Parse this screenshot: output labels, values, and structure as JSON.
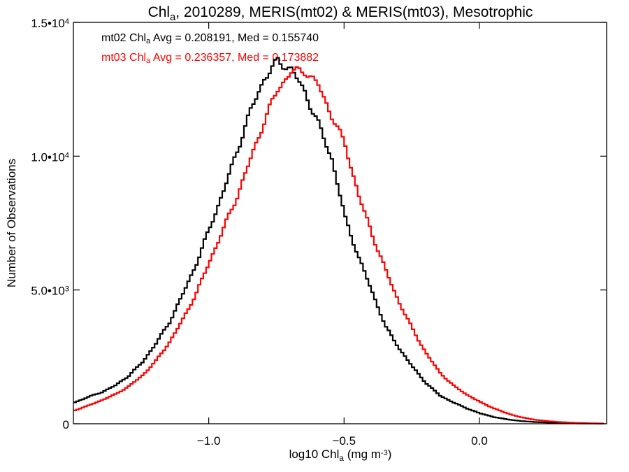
{
  "chart_data": {
    "type": "line",
    "title": {
      "parts": [
        {
          "text": "Chl",
          "sub": false
        },
        {
          "text": "a",
          "sub": true
        },
        {
          "text": ", 2010289, MERIS(mt02) & MERIS(mt03), Mesotrophic",
          "sub": false
        }
      ]
    },
    "xlabel": {
      "parts": [
        {
          "text": "log10 Chl",
          "sub": false
        },
        {
          "text": "a",
          "sub": true
        },
        {
          "text": " (mg m",
          "sub": false
        },
        {
          "text": "-3",
          "sup": true
        },
        {
          "text": ")",
          "sub": false
        }
      ]
    },
    "ylabel": "Number of Observations",
    "xlim": [
      -1.5,
      0.47
    ],
    "ylim": [
      0,
      15000
    ],
    "x_ticks": [
      {
        "value": -1.0,
        "label": "−1.0"
      },
      {
        "value": -0.5,
        "label": "−0.5"
      },
      {
        "value": 0.0,
        "label": "0.0"
      }
    ],
    "y_ticks": [
      {
        "value": 0,
        "mant": "0",
        "exp": ""
      },
      {
        "value": 5000,
        "mant": "5.0•10",
        "exp": "3"
      },
      {
        "value": 10000,
        "mant": "1.0•10",
        "exp": "4"
      },
      {
        "value": 15000,
        "mant": "1.5•10",
        "exp": "4"
      }
    ],
    "stats": [
      {
        "series": "mt02",
        "color": "#000000",
        "parts": [
          {
            "text": "mt02 Chl",
            "sub": false
          },
          {
            "text": "a",
            "sub": true
          },
          {
            "text": " Avg = 0.208191, Med = 0.155740",
            "sub": false
          }
        ]
      },
      {
        "series": "mt03",
        "color": "#ff0000",
        "parts": [
          {
            "text": "mt03 Chl",
            "sub": false
          },
          {
            "text": "a",
            "sub": true
          },
          {
            "text": " Avg = 0.236357, Med = 0.173882",
            "sub": false
          }
        ]
      }
    ],
    "series": [
      {
        "name": "mt02",
        "color": "#000000",
        "points": [
          [
            -1.5,
            800
          ],
          [
            -1.45,
            1000
          ],
          [
            -1.4,
            1180
          ],
          [
            -1.35,
            1430
          ],
          [
            -1.3,
            1800
          ],
          [
            -1.25,
            2300
          ],
          [
            -1.2,
            3000
          ],
          [
            -1.15,
            3800
          ],
          [
            -1.1,
            4850
          ],
          [
            -1.05,
            6000
          ],
          [
            -1.0,
            7350
          ],
          [
            -0.95,
            8700
          ],
          [
            -0.9,
            10200
          ],
          [
            -0.85,
            11700
          ],
          [
            -0.8,
            12900
          ],
          [
            -0.75,
            13550
          ],
          [
            -0.7,
            13250
          ],
          [
            -0.65,
            12400
          ],
          [
            -0.6,
            11200
          ],
          [
            -0.55,
            9900
          ],
          [
            -0.5,
            7650
          ],
          [
            -0.45,
            6200
          ],
          [
            -0.4,
            4900
          ],
          [
            -0.35,
            3600
          ],
          [
            -0.3,
            2800
          ],
          [
            -0.25,
            2100
          ],
          [
            -0.2,
            1500
          ],
          [
            -0.15,
            1050
          ],
          [
            -0.1,
            790
          ],
          [
            -0.05,
            570
          ],
          [
            0.0,
            380
          ],
          [
            0.05,
            250
          ],
          [
            0.1,
            160
          ],
          [
            0.15,
            100
          ],
          [
            0.2,
            65
          ],
          [
            0.25,
            42
          ],
          [
            0.3,
            25
          ],
          [
            0.35,
            15
          ],
          [
            0.4,
            8
          ],
          [
            0.45,
            5
          ]
        ]
      },
      {
        "name": "mt03",
        "color": "#ff0000",
        "points": [
          [
            -1.5,
            500
          ],
          [
            -1.45,
            680
          ],
          [
            -1.4,
            880
          ],
          [
            -1.35,
            1100
          ],
          [
            -1.3,
            1400
          ],
          [
            -1.25,
            1800
          ],
          [
            -1.2,
            2350
          ],
          [
            -1.15,
            3050
          ],
          [
            -1.1,
            3900
          ],
          [
            -1.05,
            4900
          ],
          [
            -1.0,
            6100
          ],
          [
            -0.95,
            7300
          ],
          [
            -0.9,
            8500
          ],
          [
            -0.85,
            9900
          ],
          [
            -0.8,
            11300
          ],
          [
            -0.75,
            12500
          ],
          [
            -0.7,
            13150
          ],
          [
            -0.65,
            13200
          ],
          [
            -0.6,
            12650
          ],
          [
            -0.55,
            11500
          ],
          [
            -0.5,
            10400
          ],
          [
            -0.45,
            8500
          ],
          [
            -0.4,
            7050
          ],
          [
            -0.35,
            5700
          ],
          [
            -0.3,
            4500
          ],
          [
            -0.25,
            3500
          ],
          [
            -0.2,
            2600
          ],
          [
            -0.15,
            1900
          ],
          [
            -0.1,
            1420
          ],
          [
            -0.05,
            1080
          ],
          [
            0.0,
            800
          ],
          [
            0.05,
            570
          ],
          [
            0.1,
            380
          ],
          [
            0.15,
            240
          ],
          [
            0.2,
            150
          ],
          [
            0.25,
            95
          ],
          [
            0.3,
            60
          ],
          [
            0.35,
            35
          ],
          [
            0.4,
            20
          ],
          [
            0.45,
            10
          ]
        ]
      }
    ]
  }
}
